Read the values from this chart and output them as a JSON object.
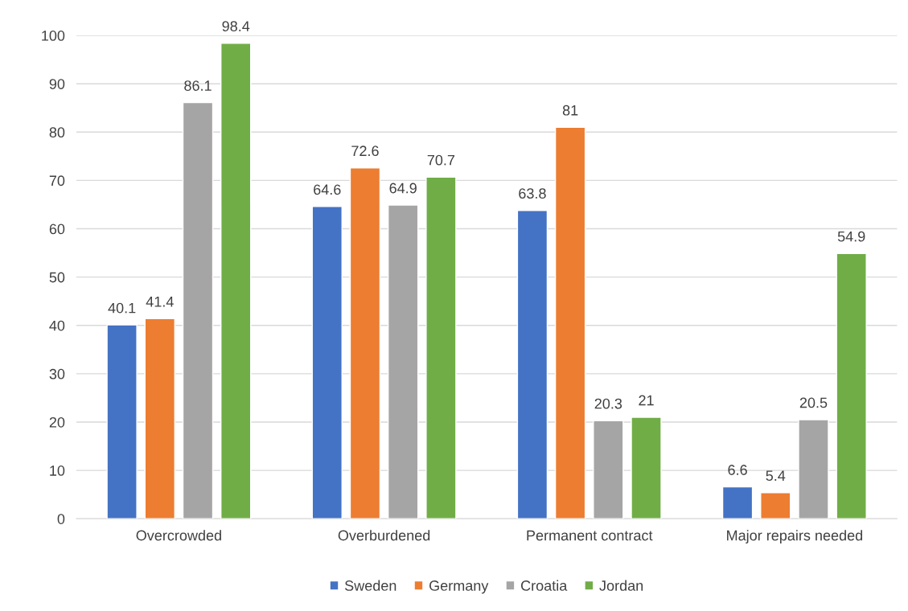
{
  "chart_data": {
    "type": "bar",
    "categories": [
      "Overcrowded",
      "Overburdened",
      "Permanent contract",
      "Major repairs needed"
    ],
    "series": [
      {
        "name": "Sweden",
        "color": "#4472c4",
        "values": [
          40.1,
          64.6,
          63.8,
          6.6
        ]
      },
      {
        "name": "Germany",
        "color": "#ed7d31",
        "values": [
          41.4,
          72.6,
          81,
          5.4
        ]
      },
      {
        "name": "Croatia",
        "color": "#a5a5a5",
        "values": [
          86.1,
          64.9,
          20.3,
          20.5
        ]
      },
      {
        "name": "Jordan",
        "color": "#70ad47",
        "values": [
          98.4,
          70.7,
          21,
          54.9
        ]
      }
    ],
    "ylim": [
      0,
      100
    ],
    "yticks": [
      0,
      10,
      20,
      30,
      40,
      50,
      60,
      70,
      80,
      90,
      100
    ],
    "grid": "y",
    "legend": "bottom",
    "data_labels": true
  }
}
